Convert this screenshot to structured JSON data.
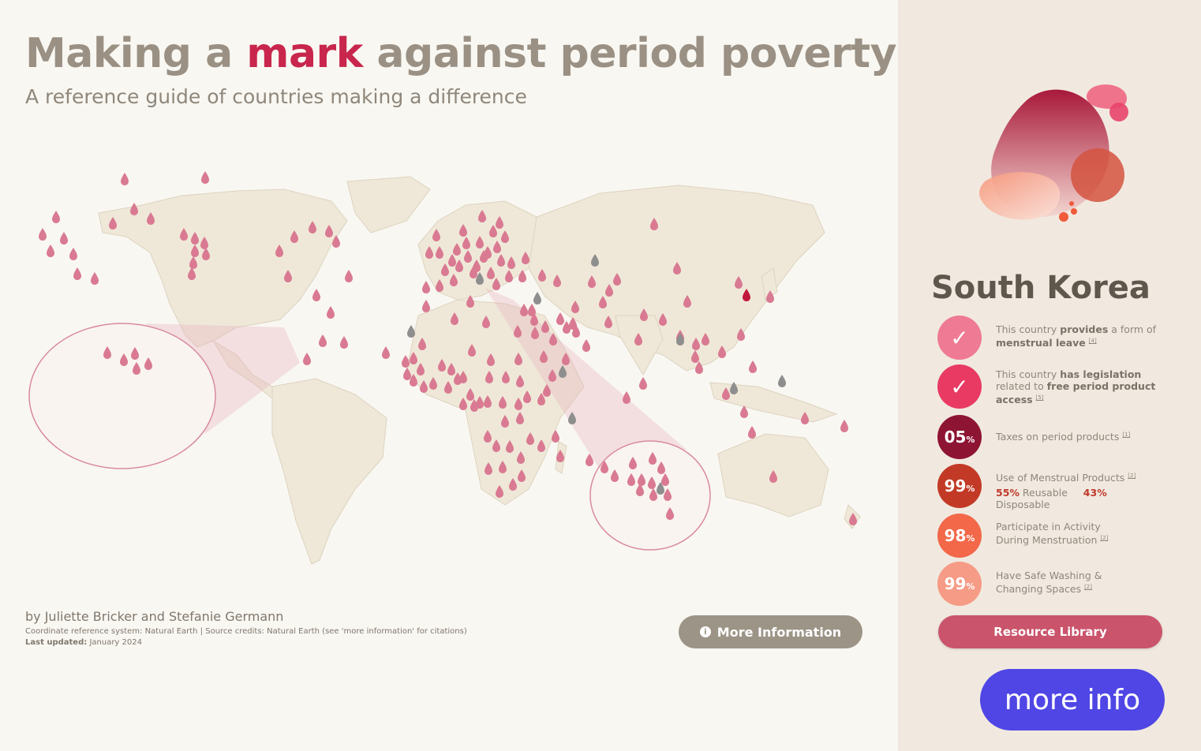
{
  "header": {
    "title_pre": "Making a ",
    "title_mark": "mark",
    "title_post": " against period poverty",
    "subtitle": "A reference guide of countries making a difference"
  },
  "footer": {
    "byline": "by Juliette Bricker and Stefanie Germann",
    "credits": "Coordinate reference system: Natural Earth | Source credits: Natural Earth (see 'more information' for citations)",
    "updated_label": "Last updated:",
    "updated_value": "January 2024",
    "more_info_label": "More Information",
    "more_info_icon": "info-icon"
  },
  "map": {
    "land_color": "#efe8d8",
    "border_color": "#ddd3bf",
    "pin_color": "#d97a92",
    "pin_gray_color": "#8e8e8e",
    "pin_selected_color": "#c0183a",
    "selected_country": "South Korea"
  },
  "panel": {
    "country": "South Korea",
    "stats": [
      {
        "icon": "check-icon",
        "color": "#ef7a93",
        "parts": [
          "This country ",
          "provides",
          " a form of ",
          "menstrual leave",
          ""
        ],
        "ref": "[4]"
      },
      {
        "icon": "check-icon",
        "color": "#e83a63",
        "parts": [
          "This country ",
          "has legislation",
          " related to ",
          "free period product access",
          ""
        ],
        "ref": "[5]"
      },
      {
        "value": "05",
        "unit": "%",
        "color": "#8e1433",
        "text": "Taxes on period products",
        "ref": "[1]"
      },
      {
        "value": "99",
        "unit": "%",
        "color": "#c23a26",
        "text": "Use of Menstrual Products",
        "ref": "[2]",
        "reusable_pct": "55%",
        "reusable_label": "Reusable",
        "disposable_pct": "43%",
        "disposable_label": "Disposable"
      },
      {
        "value": "98",
        "unit": "%",
        "color": "#f26849",
        "text": "Participate in Activity During Menstruation",
        "ref": "[2]"
      },
      {
        "value": "99",
        "unit": "%",
        "color": "#f69b86",
        "text": "Have Safe Washing & Changing Spaces",
        "ref": "[2]"
      }
    ],
    "resource_label": "Resource Library",
    "more_info_float": "more info"
  }
}
